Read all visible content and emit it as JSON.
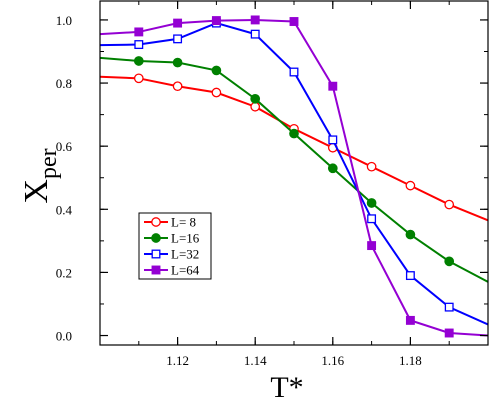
{
  "chart_data": {
    "type": "line",
    "title": "",
    "xlabel": "T*",
    "ylabel_main": "X",
    "ylabel_sub": "per",
    "xlim": [
      1.1,
      1.2
    ],
    "ylim": [
      -0.03,
      1.06
    ],
    "x_ticks": [
      1.12,
      1.14,
      1.16,
      1.18
    ],
    "x_tick_labels": [
      "1.12",
      "1.14",
      "1.16",
      "1.18"
    ],
    "y_ticks": [
      0.0,
      0.2,
      0.4,
      0.6,
      0.8,
      1.0
    ],
    "y_tick_labels": [
      "0.0",
      "0.2",
      "0.4",
      "0.6",
      "0.8",
      "1.0"
    ],
    "grid": false,
    "legend_position": "lower-left",
    "series": [
      {
        "name": "L= 8",
        "color": "#ff0000",
        "marker": "circle-open",
        "x": [
          1.1,
          1.11,
          1.12,
          1.13,
          1.14,
          1.15,
          1.16,
          1.17,
          1.18,
          1.19,
          1.2
        ],
        "y": [
          0.82,
          0.815,
          0.79,
          0.77,
          0.725,
          0.655,
          0.595,
          0.535,
          0.475,
          0.415,
          0.365
        ]
      },
      {
        "name": "L=16",
        "color": "#008000",
        "marker": "circle-filled",
        "x": [
          1.1,
          1.11,
          1.12,
          1.13,
          1.14,
          1.15,
          1.16,
          1.17,
          1.18,
          1.19,
          1.2
        ],
        "y": [
          0.88,
          0.87,
          0.865,
          0.84,
          0.75,
          0.64,
          0.53,
          0.42,
          0.32,
          0.235,
          0.17
        ]
      },
      {
        "name": "L=32",
        "color": "#0000ff",
        "marker": "square-open",
        "x": [
          1.1,
          1.11,
          1.12,
          1.13,
          1.14,
          1.15,
          1.16,
          1.17,
          1.18,
          1.19,
          1.2
        ],
        "y": [
          0.92,
          0.922,
          0.94,
          0.99,
          0.955,
          0.835,
          0.62,
          0.37,
          0.19,
          0.09,
          0.035
        ]
      },
      {
        "name": "L=64",
        "color": "#9400d3",
        "marker": "square-filled",
        "x": [
          1.1,
          1.11,
          1.12,
          1.13,
          1.14,
          1.15,
          1.16,
          1.17,
          1.18,
          1.19,
          1.2
        ],
        "y": [
          0.955,
          0.962,
          0.99,
          0.998,
          1.0,
          0.995,
          0.79,
          0.285,
          0.048,
          0.008,
          0.0
        ]
      }
    ]
  }
}
